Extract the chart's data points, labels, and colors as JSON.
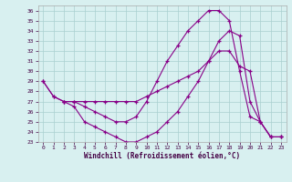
{
  "xlabel": "Windchill (Refroidissement éolien,°C)",
  "bg_color": "#d8f0f0",
  "line_color": "#880088",
  "xlim": [
    -0.5,
    23.5
  ],
  "ylim": [
    23,
    36.5
  ],
  "xticks": [
    0,
    1,
    2,
    3,
    4,
    5,
    6,
    7,
    8,
    9,
    10,
    11,
    12,
    13,
    14,
    15,
    16,
    17,
    18,
    19,
    20,
    21,
    22,
    23
  ],
  "yticks": [
    23,
    24,
    25,
    26,
    27,
    28,
    29,
    30,
    31,
    32,
    33,
    34,
    35,
    36
  ],
  "line1_x": [
    0,
    1,
    2,
    3,
    4,
    5,
    6,
    7,
    8,
    9,
    10,
    11,
    12,
    13,
    14,
    15,
    16,
    17,
    18,
    19,
    20,
    21,
    22,
    23
  ],
  "line1_y": [
    29,
    27.5,
    27,
    27,
    27,
    27,
    27,
    27,
    27,
    27,
    27.5,
    28,
    28.5,
    29,
    29.5,
    30,
    31,
    32,
    32,
    30.5,
    30,
    25,
    23.5,
    23.5
  ],
  "line2_x": [
    0,
    1,
    2,
    3,
    4,
    5,
    6,
    7,
    8,
    9,
    10,
    11,
    12,
    13,
    14,
    15,
    16,
    17,
    18,
    19,
    20,
    21,
    22,
    23
  ],
  "line2_y": [
    29,
    27.5,
    27,
    26.5,
    25,
    24.5,
    24,
    23.5,
    23,
    23,
    23.5,
    24,
    25,
    26,
    27.5,
    29,
    31,
    33,
    34,
    33.5,
    27,
    25,
    23.5,
    23.5
  ],
  "line3_x": [
    2,
    3,
    4,
    5,
    6,
    7,
    8,
    9,
    10,
    11,
    12,
    13,
    14,
    15,
    16,
    17,
    18,
    19,
    20,
    21,
    22,
    23
  ],
  "line3_y": [
    27,
    27,
    26.5,
    26,
    25.5,
    25,
    25,
    25.5,
    27,
    29,
    31,
    32.5,
    34,
    35,
    36,
    36,
    35,
    30,
    25.5,
    25,
    23.5,
    23.5
  ]
}
